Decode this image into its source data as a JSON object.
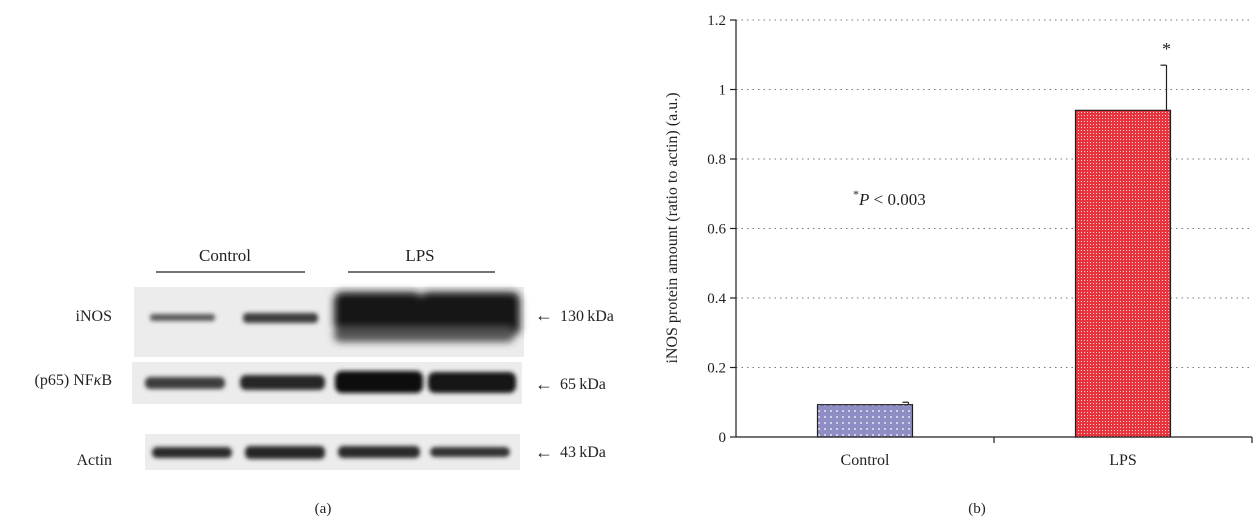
{
  "panel_a": {
    "caption": "(a)",
    "group_labels": [
      "Control",
      "LPS"
    ],
    "rows": [
      {
        "label_main": "iNOS",
        "label_kappa": "",
        "label_tail": "",
        "marker": "130 kDa"
      },
      {
        "label_main": "(p65) NF",
        "label_kappa": "κ",
        "label_tail": "B",
        "marker": "65 kDa"
      },
      {
        "label_main": "Actin",
        "label_kappa": "",
        "label_tail": "",
        "marker": "43 kDa"
      }
    ],
    "arrow": "←"
  },
  "panel_b": {
    "caption": "(b)",
    "annotation": {
      "star": "*",
      "p_letter": "P",
      "rest": " < 0.003"
    },
    "chart_data": {
      "type": "bar",
      "categories": [
        "Control",
        "LPS"
      ],
      "values": [
        0.093,
        0.94
      ],
      "error": [
        0.007,
        0.13
      ],
      "significance": [
        "",
        "*"
      ],
      "title": "",
      "xlabel": "",
      "ylabel": "iNOS protein amount (ratio to actin) (a.u.)",
      "ylim": [
        0,
        1.2
      ],
      "yticks": [
        0,
        0.2,
        0.4,
        0.6,
        0.8,
        1,
        1.2
      ],
      "ytick_labels": [
        "0",
        "0.2",
        "0.4",
        "0.6",
        "0.8",
        "1",
        "1.2"
      ],
      "grid": "dotted horizontal",
      "colors": [
        "#8e8ec4",
        "#e8333d"
      ]
    }
  }
}
